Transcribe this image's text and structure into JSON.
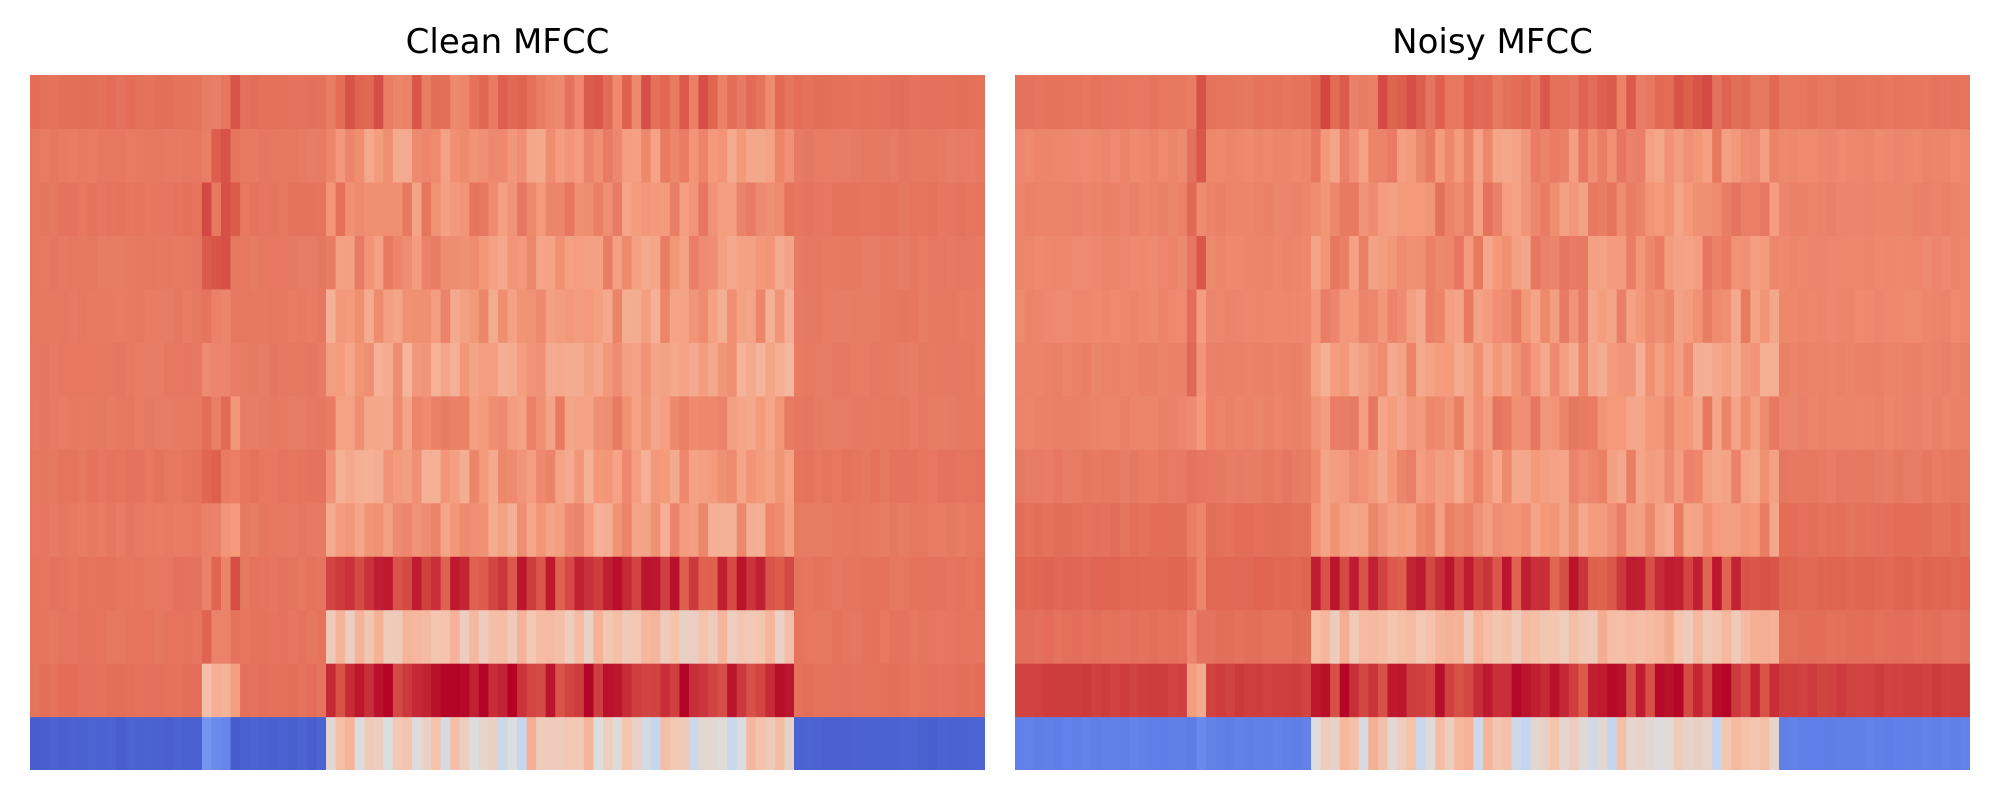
{
  "figure": {
    "panels": [
      {
        "title": "Clean MFCC"
      },
      {
        "title": "Noisy MFCC"
      }
    ]
  },
  "chart_data": [
    {
      "type": "heatmap",
      "title": "Clean MFCC",
      "n_rows": 13,
      "n_cols": 100,
      "colormap": "coolwarm",
      "value_range": [
        0,
        1
      ],
      "axes": "off",
      "row_order": "row 0 at bottom",
      "background_levels_bottom_to_top": [
        0.05,
        0.84,
        0.83,
        0.83,
        0.82,
        0.83,
        0.82,
        0.82,
        0.82,
        0.82,
        0.83,
        0.82,
        0.84
      ],
      "active_segments": [
        {
          "col_start": 31,
          "col_end": 79,
          "levels_bottom_to_top": [
            0.56,
            0.95,
            0.62,
            0.93,
            0.74,
            0.74,
            0.76,
            0.72,
            0.74,
            0.76,
            0.78,
            0.76,
            0.84
          ]
        },
        {
          "col_start": 18,
          "col_end": 21,
          "levels_bottom_to_top": [
            0.13,
            0.69,
            0.82,
            0.85,
            0.8,
            0.85,
            0.8,
            0.82,
            0.82,
            0.85,
            0.86,
            0.85,
            0.85
          ]
        }
      ]
    },
    {
      "type": "heatmap",
      "title": "Noisy MFCC",
      "n_rows": 13,
      "n_cols": 100,
      "colormap": "coolwarm",
      "value_range": [
        0,
        1
      ],
      "axes": "off",
      "row_order": "row 0 at bottom",
      "background_levels_bottom_to_top": [
        0.12,
        0.92,
        0.84,
        0.86,
        0.84,
        0.82,
        0.8,
        0.8,
        0.79,
        0.79,
        0.8,
        0.79,
        0.83
      ],
      "active_segments": [
        {
          "col_start": 31,
          "col_end": 79,
          "levels_bottom_to_top": [
            0.55,
            0.94,
            0.64,
            0.92,
            0.76,
            0.75,
            0.77,
            0.74,
            0.76,
            0.77,
            0.78,
            0.77,
            0.85
          ]
        },
        {
          "col_start": 18,
          "col_end": 19,
          "levels_bottom_to_top": [
            0.2,
            0.75,
            0.8,
            0.84,
            0.8,
            0.84,
            0.8,
            0.8,
            0.8,
            0.84,
            0.84,
            0.84,
            0.84
          ]
        }
      ]
    }
  ]
}
